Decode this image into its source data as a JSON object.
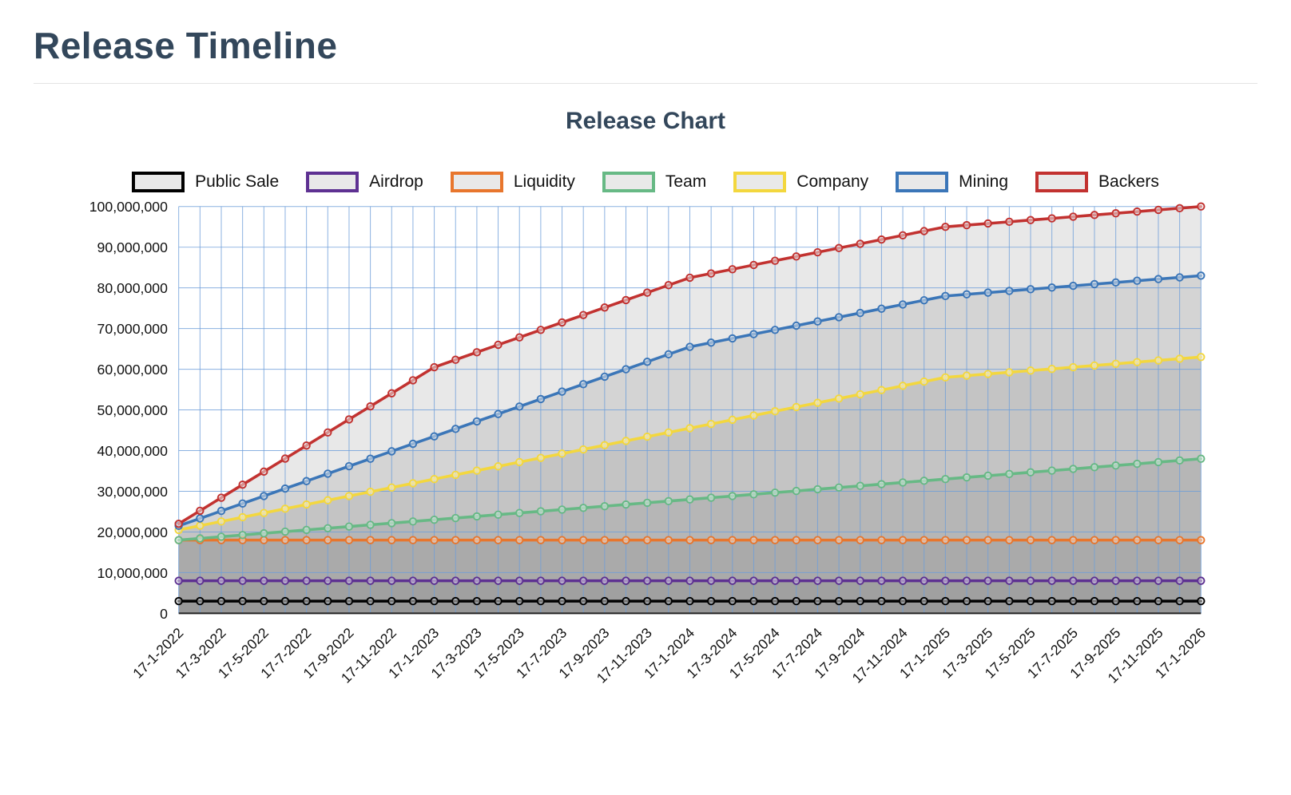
{
  "page": {
    "title": "Release Timeline"
  },
  "chart_data": {
    "type": "area",
    "title": "Release Chart",
    "cumulative": true,
    "grid": true,
    "legend_position": "top",
    "grid_color": "#6d9eda",
    "area_fill": "#6e6e6e",
    "area_opacity": 0.16,
    "axis_text_color": "#111111",
    "ylim": [
      0,
      100000000
    ],
    "y_ticks": [
      0,
      10000000,
      20000000,
      30000000,
      40000000,
      50000000,
      60000000,
      70000000,
      80000000,
      90000000,
      100000000
    ],
    "x_label_step": 2,
    "x": [
      "17-1-2022",
      "17-2-2022",
      "17-3-2022",
      "17-4-2022",
      "17-5-2022",
      "17-6-2022",
      "17-7-2022",
      "17-8-2022",
      "17-9-2022",
      "17-10-2022",
      "17-11-2022",
      "17-12-2022",
      "17-1-2023",
      "17-2-2023",
      "17-3-2023",
      "17-4-2023",
      "17-5-2023",
      "17-6-2023",
      "17-7-2023",
      "17-8-2023",
      "17-9-2023",
      "17-10-2023",
      "17-11-2023",
      "17-12-2023",
      "17-1-2024",
      "17-2-2024",
      "17-3-2024",
      "17-4-2024",
      "17-5-2024",
      "17-6-2024",
      "17-7-2024",
      "17-8-2024",
      "17-9-2024",
      "17-10-2024",
      "17-11-2024",
      "17-12-2024",
      "17-1-2025",
      "17-2-2025",
      "17-3-2025",
      "17-4-2025",
      "17-5-2025",
      "17-6-2025",
      "17-7-2025",
      "17-8-2025",
      "17-9-2025",
      "17-10-2025",
      "17-11-2025",
      "17-12-2025",
      "17-1-2026"
    ],
    "series": [
      {
        "name": "Public Sale",
        "color": "#000000",
        "values": [
          3000000,
          3000000,
          3000000,
          3000000,
          3000000,
          3000000,
          3000000,
          3000000,
          3000000,
          3000000,
          3000000,
          3000000,
          3000000,
          3000000,
          3000000,
          3000000,
          3000000,
          3000000,
          3000000,
          3000000,
          3000000,
          3000000,
          3000000,
          3000000,
          3000000,
          3000000,
          3000000,
          3000000,
          3000000,
          3000000,
          3000000,
          3000000,
          3000000,
          3000000,
          3000000,
          3000000,
          3000000,
          3000000,
          3000000,
          3000000,
          3000000,
          3000000,
          3000000,
          3000000,
          3000000,
          3000000,
          3000000,
          3000000,
          3000000
        ]
      },
      {
        "name": "Airdrop",
        "color": "#5e3192",
        "values": [
          8000000,
          8000000,
          8000000,
          8000000,
          8000000,
          8000000,
          8000000,
          8000000,
          8000000,
          8000000,
          8000000,
          8000000,
          8000000,
          8000000,
          8000000,
          8000000,
          8000000,
          8000000,
          8000000,
          8000000,
          8000000,
          8000000,
          8000000,
          8000000,
          8000000,
          8000000,
          8000000,
          8000000,
          8000000,
          8000000,
          8000000,
          8000000,
          8000000,
          8000000,
          8000000,
          8000000,
          8000000,
          8000000,
          8000000,
          8000000,
          8000000,
          8000000,
          8000000,
          8000000,
          8000000,
          8000000,
          8000000,
          8000000,
          8000000
        ]
      },
      {
        "name": "Liquidity",
        "color": "#e8762d",
        "values": [
          18000000,
          18000000,
          18000000,
          18000000,
          18000000,
          18000000,
          18000000,
          18000000,
          18000000,
          18000000,
          18000000,
          18000000,
          18000000,
          18000000,
          18000000,
          18000000,
          18000000,
          18000000,
          18000000,
          18000000,
          18000000,
          18000000,
          18000000,
          18000000,
          18000000,
          18000000,
          18000000,
          18000000,
          18000000,
          18000000,
          18000000,
          18000000,
          18000000,
          18000000,
          18000000,
          18000000,
          18000000,
          18000000,
          18000000,
          18000000,
          18000000,
          18000000,
          18000000,
          18000000,
          18000000,
          18000000,
          18000000,
          18000000,
          18000000
        ]
      },
      {
        "name": "Team",
        "color": "#67b985",
        "values": [
          18000000,
          18420000,
          18830000,
          19250000,
          19670000,
          20080000,
          20500000,
          20920000,
          21330000,
          21750000,
          22170000,
          22580000,
          23000000,
          23420000,
          23830000,
          24250000,
          24670000,
          25080000,
          25500000,
          25920000,
          26330000,
          26750000,
          27170000,
          27580000,
          28000000,
          28420000,
          28830000,
          29250000,
          29670000,
          30080000,
          30500000,
          30920000,
          31330000,
          31750000,
          32170000,
          32580000,
          33000000,
          33420000,
          33830000,
          34250000,
          34670000,
          35080000,
          35500000,
          35920000,
          36330000,
          36750000,
          37170000,
          37580000,
          38000000
        ]
      },
      {
        "name": "Company",
        "color": "#f3d73e",
        "values": [
          20500000,
          21540000,
          22580000,
          23630000,
          24670000,
          25710000,
          26750000,
          27790000,
          28830000,
          29880000,
          30920000,
          31960000,
          33000000,
          34040000,
          35080000,
          36130000,
          37170000,
          38210000,
          39250000,
          40290000,
          41330000,
          42380000,
          43420000,
          44460000,
          45500000,
          46540000,
          47580000,
          48630000,
          49670000,
          50710000,
          51750000,
          52790000,
          53830000,
          54880000,
          55920000,
          56960000,
          58000000,
          58420000,
          58830000,
          59250000,
          59670000,
          60080000,
          60500000,
          60920000,
          61330000,
          61750000,
          62170000,
          62580000,
          63000000
        ]
      },
      {
        "name": "Mining",
        "color": "#3b76b8",
        "values": [
          21500000,
          23330000,
          25170000,
          27000000,
          28830000,
          30670000,
          32500000,
          34330000,
          36170000,
          38000000,
          39830000,
          41670000,
          43500000,
          45330000,
          47170000,
          49000000,
          50830000,
          52670000,
          54500000,
          56330000,
          58170000,
          60000000,
          61830000,
          63670000,
          65500000,
          66540000,
          67580000,
          68630000,
          69670000,
          70710000,
          71750000,
          72790000,
          73830000,
          74880000,
          75920000,
          76960000,
          78000000,
          78420000,
          78830000,
          79250000,
          79670000,
          80080000,
          80500000,
          80920000,
          81330000,
          81750000,
          82170000,
          82580000,
          83000000
        ]
      },
      {
        "name": "Backers",
        "color": "#c23230",
        "values": [
          22000000,
          25210000,
          28420000,
          31630000,
          34830000,
          38040000,
          41250000,
          44460000,
          47670000,
          50880000,
          54080000,
          57290000,
          60500000,
          62330000,
          64170000,
          66000000,
          67830000,
          69670000,
          71500000,
          73330000,
          75170000,
          77000000,
          78830000,
          80670000,
          82500000,
          83540000,
          84580000,
          85630000,
          86670000,
          87710000,
          88750000,
          89790000,
          90830000,
          91880000,
          92920000,
          93960000,
          95000000,
          95420000,
          95830000,
          96250000,
          96670000,
          97080000,
          97500000,
          97920000,
          98330000,
          98750000,
          99170000,
          99580000,
          100000000
        ]
      }
    ]
  }
}
